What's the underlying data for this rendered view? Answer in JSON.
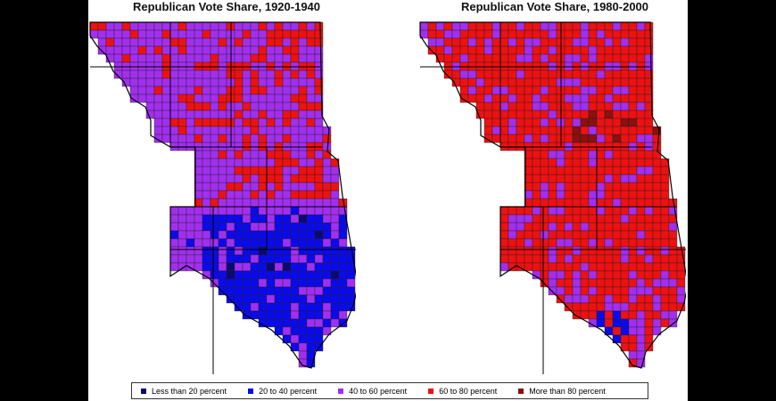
{
  "maps": [
    {
      "id": "left",
      "title": "Republican Vote Share, 1920-1940",
      "palette": "early"
    },
    {
      "id": "right",
      "title": "Republican Vote Share, 1980-2000",
      "palette": "late"
    }
  ],
  "legend": [
    {
      "label": "Less than 20 percent",
      "color": "#0a0a6e"
    },
    {
      "label": "20 to 40 percent",
      "color": "#0a0aee"
    },
    {
      "label": "40 to 60 percent",
      "color": "#a22fef"
    },
    {
      "label": "60 to 80 percent",
      "color": "#ee1111"
    },
    {
      "label": "More than 80 percent",
      "color": "#8b1010"
    }
  ],
  "colors": {
    "dark_blue": "#0a0a6e",
    "blue": "#0a0aee",
    "purple": "#a22fef",
    "red": "#ee1111",
    "dark_red": "#8b1010",
    "border": "#000000"
  }
}
